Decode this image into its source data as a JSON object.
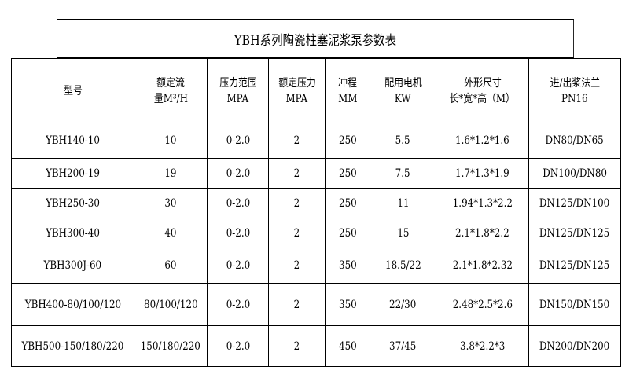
{
  "title": "YBH系列陶瓷柱塞泥浆泵参数表",
  "headers": [
    [
      "型号"
    ],
    [
      "额定流",
      "量M³/H"
    ],
    [
      "压力范围",
      "MPA"
    ],
    [
      "额定压力",
      "MPA"
    ],
    [
      "冲程",
      "MM"
    ],
    [
      "配用电机",
      "KW"
    ],
    [
      "外形尺寸",
      "长*宽*高（M）"
    ],
    [
      "进/出浆法兰",
      "PN16"
    ]
  ],
  "rows": [
    [
      "YBH140-10",
      "10",
      "0-2.0",
      "2",
      "250",
      "5.5",
      "1.6*1.2*1.6",
      "DN80/DN65"
    ],
    [
      "YBH200-19",
      "19",
      "0-2.0",
      "2",
      "250",
      "7.5",
      "1.7*1.3*1.9",
      "DN100/DN80"
    ],
    [
      "YBH250-30",
      "30",
      "0-2.0",
      "2",
      "250",
      "11",
      "1.94*1.3*2.2",
      "DN125/DN100"
    ],
    [
      "YBH300-40",
      "40",
      "0-2.0",
      "2",
      "250",
      "15",
      "2.1*1.8*2.2",
      "DN125/DN125"
    ],
    [
      "YBH300J-60",
      "60",
      "0-2.0",
      "2",
      "350",
      "18.5/22",
      "2.1*1.8*2.32",
      "DN125/DN125"
    ],
    [
      "YBH400-80/100/120",
      "80/100/120",
      "0-2.0",
      "2",
      "350",
      "22/30",
      "2.48*2.5*2.6",
      "DN150/DN150"
    ],
    [
      "YBH500-150/180/220",
      "150/180/220",
      "0-2.0",
      "2",
      "450",
      "37/45",
      "3.8*2.2*3",
      "DN200/DN200"
    ]
  ]
}
